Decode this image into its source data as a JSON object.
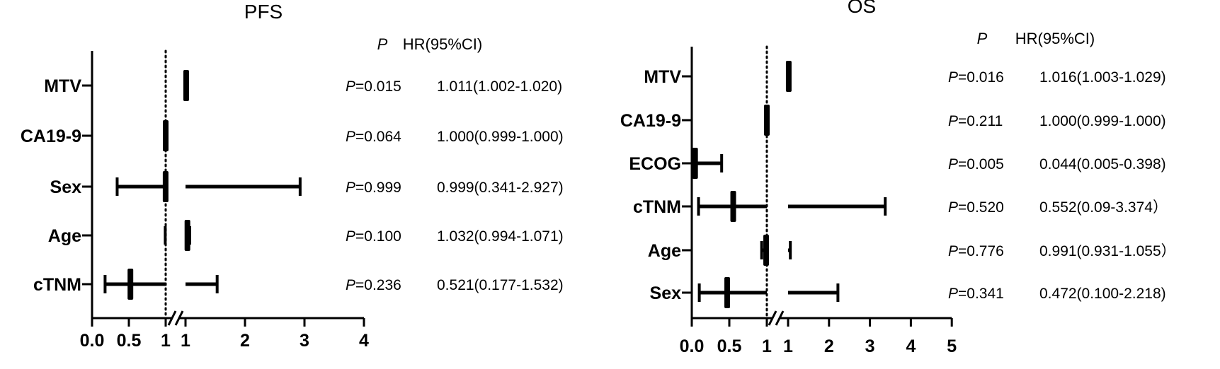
{
  "chart_data": [
    {
      "type": "forest",
      "title": "PFS",
      "p_header": "P",
      "hr_header": "HR(95%CI)",
      "p_prefix": "P",
      "x_ticks_low": [
        "0.0",
        "0.5",
        "1"
      ],
      "x_ticks_high": [
        "1",
        "2",
        "3",
        "4"
      ],
      "rows": [
        {
          "label": "MTV",
          "hr": 1.011,
          "lo": 1.002,
          "hi": 1.02,
          "p": "=0.015",
          "hr_text": "1.011(1.002-1.020)"
        },
        {
          "label": "CA19-9",
          "hr": 1.0,
          "lo": 0.999,
          "hi": 1.0,
          "p": "=0.064",
          "hr_text": "1.000(0.999-1.000)"
        },
        {
          "label": "Sex",
          "hr": 0.999,
          "lo": 0.341,
          "hi": 2.927,
          "p": "=0.999",
          "hr_text": "0.999(0.341-2.927)"
        },
        {
          "label": "Age",
          "hr": 1.032,
          "lo": 0.994,
          "hi": 1.071,
          "p": "=0.100",
          "hr_text": "1.032(0.994-1.071)"
        },
        {
          "label": "cTNM",
          "hr": 0.521,
          "lo": 0.177,
          "hi": 1.532,
          "p": "=0.236",
          "hr_text": "0.521(0.177-1.532)"
        }
      ]
    },
    {
      "type": "forest",
      "title": "OS",
      "p_header": "P",
      "hr_header": "HR(95%CI)",
      "p_prefix": "P",
      "x_ticks_low": [
        "0.0",
        "0.5",
        "1"
      ],
      "x_ticks_high": [
        "1",
        "2",
        "3",
        "4",
        "5"
      ],
      "rows": [
        {
          "label": "MTV",
          "hr": 1.016,
          "lo": 1.003,
          "hi": 1.029,
          "p": "=0.016",
          "hr_text": "1.016(1.003-1.029)"
        },
        {
          "label": "CA19-9",
          "hr": 1.0,
          "lo": 0.999,
          "hi": 1.0,
          "p": "=0.211",
          "hr_text": "1.000(0.999-1.000)"
        },
        {
          "label": "ECOG",
          "hr": 0.044,
          "lo": 0.005,
          "hi": 0.398,
          "p": "=0.005",
          "hr_text": "0.044(0.005-0.398)"
        },
        {
          "label": "cTNM",
          "hr": 0.552,
          "lo": 0.09,
          "hi": 3.374,
          "p": "=0.520",
          "hr_text": "0.552(0.09-3.374）"
        },
        {
          "label": "Age",
          "hr": 0.991,
          "lo": 0.931,
          "hi": 1.055,
          "p": "=0.776",
          "hr_text": "0.991(0.931-1.055）"
        },
        {
          "label": "Sex",
          "hr": 0.472,
          "lo": 0.1,
          "hi": 2.218,
          "p": "=0.341",
          "hr_text": "0.472(0.100-2.218)"
        }
      ]
    }
  ]
}
